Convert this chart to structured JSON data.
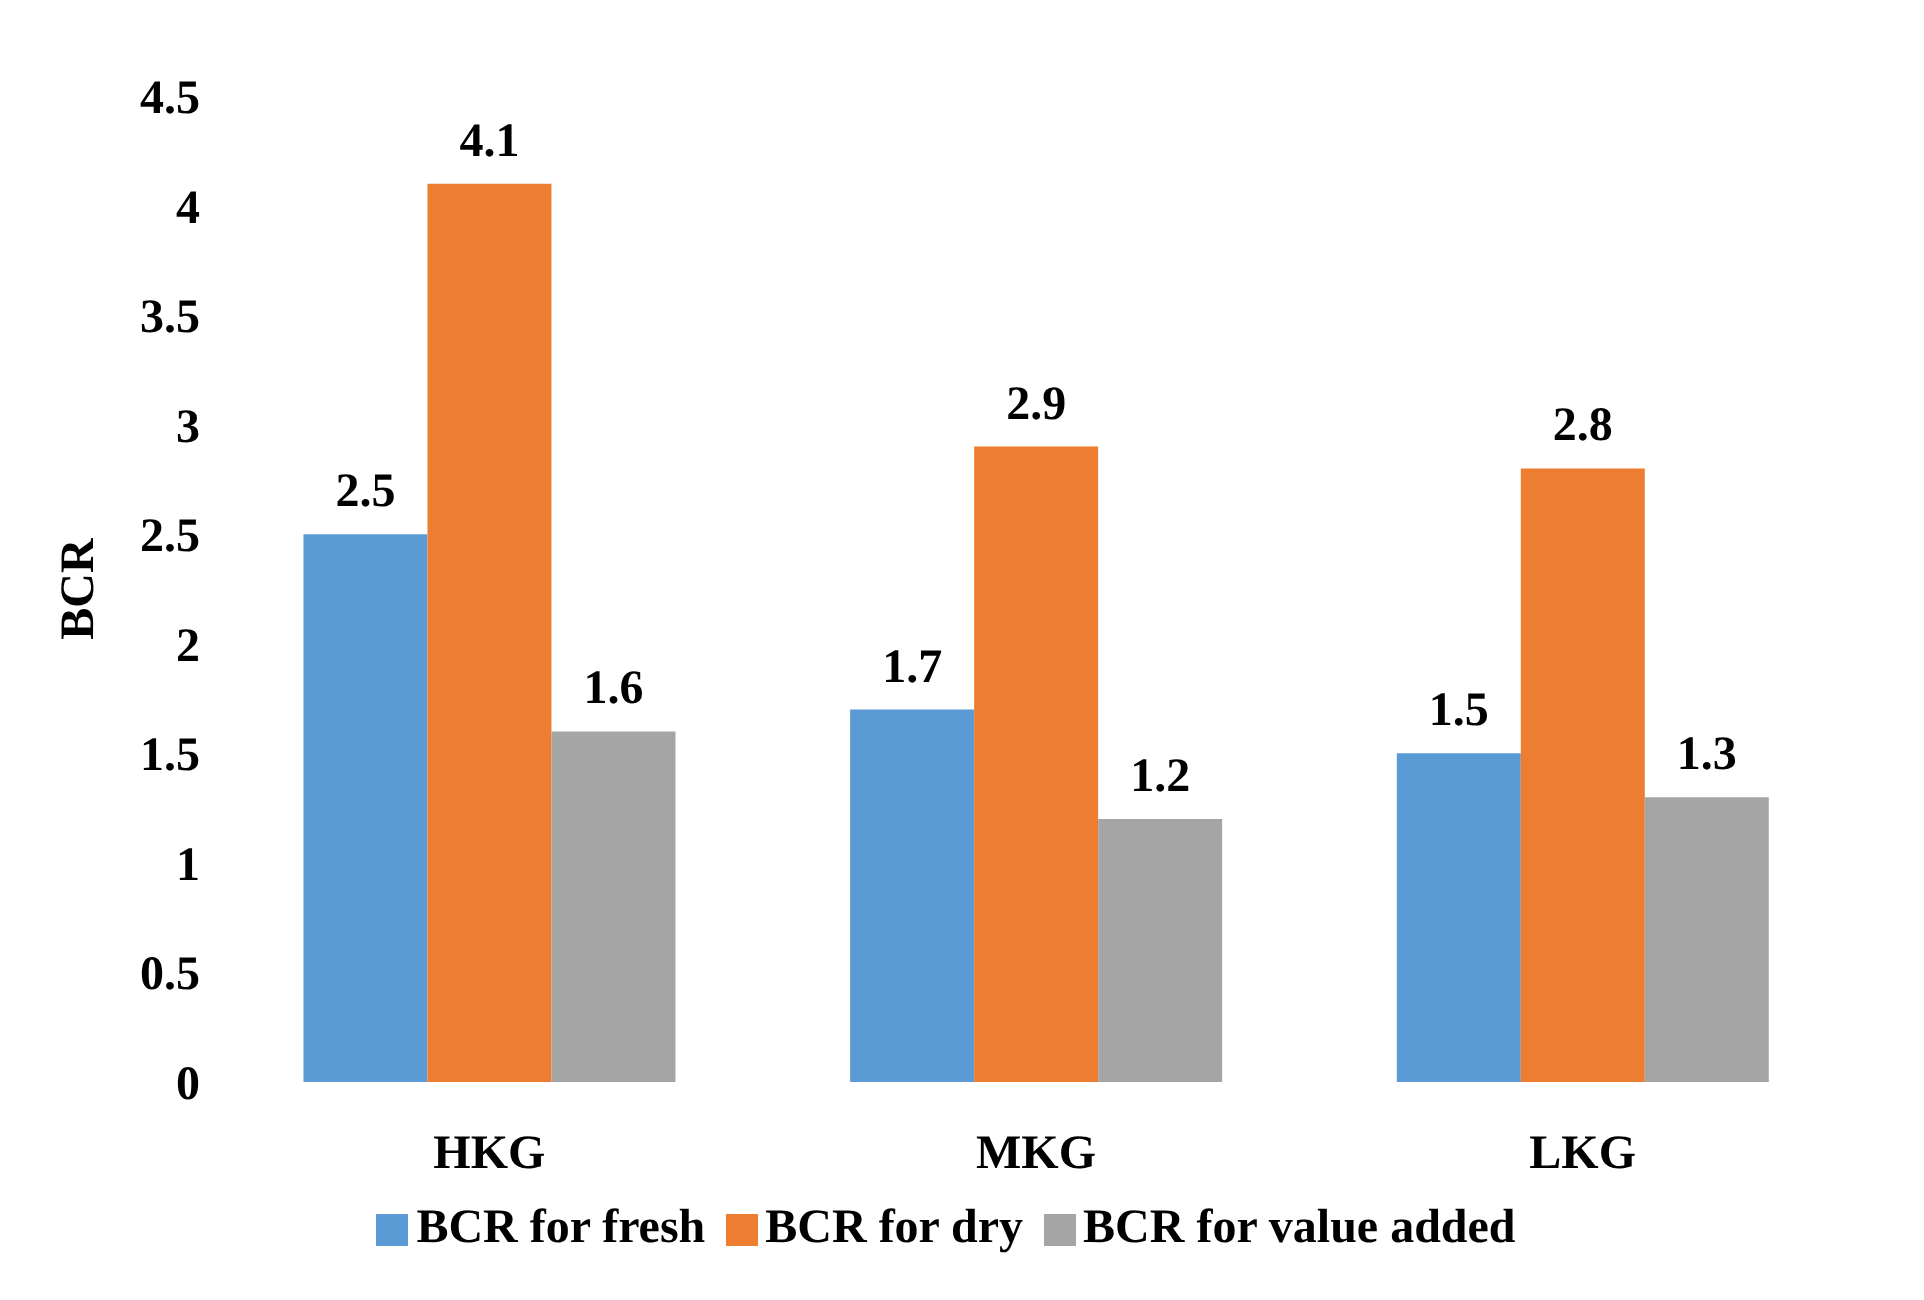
{
  "chart_data": {
    "type": "bar",
    "ylabel": "BCR",
    "categories": [
      "HKG",
      "MKG",
      "LKG"
    ],
    "series": [
      {
        "name": "BCR for fresh",
        "color": "#5b9bd5",
        "values": [
          2.5,
          1.7,
          1.5
        ]
      },
      {
        "name": "BCR for dry",
        "color": "#ed7d31",
        "values": [
          4.1,
          2.9,
          2.8
        ]
      },
      {
        "name": "BCR for value added",
        "color": "#a5a5a5",
        "values": [
          1.6,
          1.2,
          1.3
        ]
      }
    ],
    "ylim": [
      0,
      4.5
    ],
    "yticks": [
      0,
      0.5,
      1,
      1.5,
      2,
      2.5,
      3,
      3.5,
      4,
      4.5
    ],
    "grid": false,
    "legend": "bottom",
    "data_labels": true
  }
}
